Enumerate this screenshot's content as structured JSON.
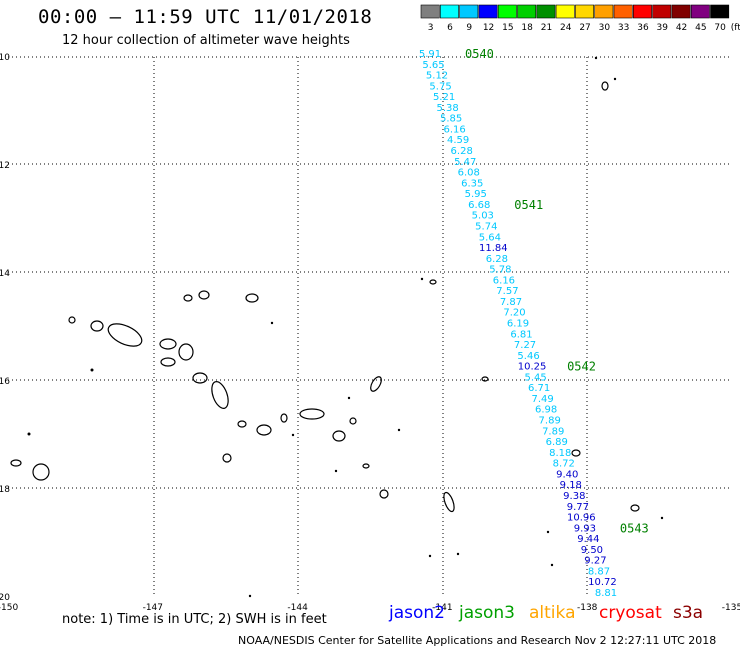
{
  "header": {
    "title": "00:00 – 11:59 UTC 11/01/2018",
    "subtitle": "12 hour collection of altimeter wave heights"
  },
  "legend": {
    "unit": "(ft)",
    "bins": [
      {
        "label": "3",
        "color": "#7f7f7f"
      },
      {
        "label": "6",
        "color": "#00ffff"
      },
      {
        "label": "9",
        "color": "#00c8ff"
      },
      {
        "label": "12",
        "color": "#0000ff"
      },
      {
        "label": "15",
        "color": "#00ff00"
      },
      {
        "label": "18",
        "color": "#00d000"
      },
      {
        "label": "21",
        "color": "#009000"
      },
      {
        "label": "24",
        "color": "#ffff00"
      },
      {
        "label": "27",
        "color": "#ffd700"
      },
      {
        "label": "30",
        "color": "#ffa000"
      },
      {
        "label": "33",
        "color": "#ff6000"
      },
      {
        "label": "36",
        "color": "#ff0000"
      },
      {
        "label": "39",
        "color": "#c00000"
      },
      {
        "label": "42",
        "color": "#800000"
      },
      {
        "label": "45",
        "color": "#800080"
      },
      {
        "label": "70",
        "color": "#000000"
      }
    ]
  },
  "axes": {
    "lat_labels": [
      "-10",
      "-12",
      "-14",
      "-16",
      "-18",
      "-20"
    ],
    "lon_labels": [
      "-150",
      "-147",
      "-144",
      "-141",
      "-138",
      "-135"
    ],
    "lat_range": [
      -20,
      -10
    ],
    "lon_range": [
      -150,
      -135
    ]
  },
  "track": {
    "points": [
      {
        "v": "5.91",
        "c": "#00c8ff"
      },
      {
        "v": "5.65",
        "c": "#00c8ff"
      },
      {
        "v": "5.12",
        "c": "#00c8ff"
      },
      {
        "v": "5.75",
        "c": "#00c8ff"
      },
      {
        "v": "5.21",
        "c": "#00c8ff"
      },
      {
        "v": "5.38",
        "c": "#00c8ff"
      },
      {
        "v": "5.85",
        "c": "#00c8ff"
      },
      {
        "v": "6.16",
        "c": "#00c8ff"
      },
      {
        "v": "4.59",
        "c": "#00c8ff"
      },
      {
        "v": "6.28",
        "c": "#00c8ff"
      },
      {
        "v": "5.47",
        "c": "#00c8ff"
      },
      {
        "v": "6.08",
        "c": "#00c8ff"
      },
      {
        "v": "6.35",
        "c": "#00c8ff"
      },
      {
        "v": "5.95",
        "c": "#00c8ff"
      },
      {
        "v": "6.68",
        "c": "#00c8ff"
      },
      {
        "v": "5.03",
        "c": "#00c8ff"
      },
      {
        "v": "5.74",
        "c": "#00c8ff"
      },
      {
        "v": "5.64",
        "c": "#00c8ff"
      },
      {
        "v": "11.84",
        "c": "#0000cc"
      },
      {
        "v": "6.28",
        "c": "#00c8ff"
      },
      {
        "v": "5.78",
        "c": "#00c8ff"
      },
      {
        "v": "6.16",
        "c": "#00c8ff"
      },
      {
        "v": "7.57",
        "c": "#00c8ff"
      },
      {
        "v": "7.87",
        "c": "#00c8ff"
      },
      {
        "v": "7.20",
        "c": "#00c8ff"
      },
      {
        "v": "6.19",
        "c": "#00c8ff"
      },
      {
        "v": "6.81",
        "c": "#00c8ff"
      },
      {
        "v": "7.27",
        "c": "#00c8ff"
      },
      {
        "v": "5.46",
        "c": "#00c8ff"
      },
      {
        "v": "10.25",
        "c": "#0000cc"
      },
      {
        "v": "5.45",
        "c": "#00c8ff"
      },
      {
        "v": "6.71",
        "c": "#00c8ff"
      },
      {
        "v": "7.49",
        "c": "#00c8ff"
      },
      {
        "v": "6.98",
        "c": "#00c8ff"
      },
      {
        "v": "7.89",
        "c": "#00c8ff"
      },
      {
        "v": "7.89",
        "c": "#00c8ff"
      },
      {
        "v": "6.89",
        "c": "#00c8ff"
      },
      {
        "v": "8.18",
        "c": "#00c8ff"
      },
      {
        "v": "8.72",
        "c": "#00c8ff"
      },
      {
        "v": "9.40",
        "c": "#0000cc"
      },
      {
        "v": "9.18",
        "c": "#0000cc"
      },
      {
        "v": "9.38",
        "c": "#0000cc"
      },
      {
        "v": "9.77",
        "c": "#0000cc"
      },
      {
        "v": "10.96",
        "c": "#0000cc"
      },
      {
        "v": "9.93",
        "c": "#0000cc"
      },
      {
        "v": "9.44",
        "c": "#0000cc"
      },
      {
        "v": "9.50",
        "c": "#0000cc"
      },
      {
        "v": "9.27",
        "c": "#0000cc"
      },
      {
        "v": "8.87",
        "c": "#00c8ff"
      },
      {
        "v": "10.72",
        "c": "#0000cc"
      },
      {
        "v": "8.81",
        "c": "#00c8ff"
      }
    ],
    "time_labels": [
      "0540",
      "0541",
      "0542",
      "0543"
    ],
    "time_color": "#008000"
  },
  "footer": {
    "note": "note:  1) Time is in UTC;  2) SWH is in feet",
    "satellites": [
      {
        "name": "jason2",
        "color": "#0000ff"
      },
      {
        "name": "jason3",
        "color": "#00a000"
      },
      {
        "name": "altika",
        "color": "#ffa500"
      },
      {
        "name": "cryosat",
        "color": "#ff0000"
      },
      {
        "name": "s3a",
        "color": "#8b0000"
      }
    ],
    "credit": "NOAA/NESDIS Center for Satellite Applications and Research    Nov  2 12:27:11 UTC 2018"
  }
}
